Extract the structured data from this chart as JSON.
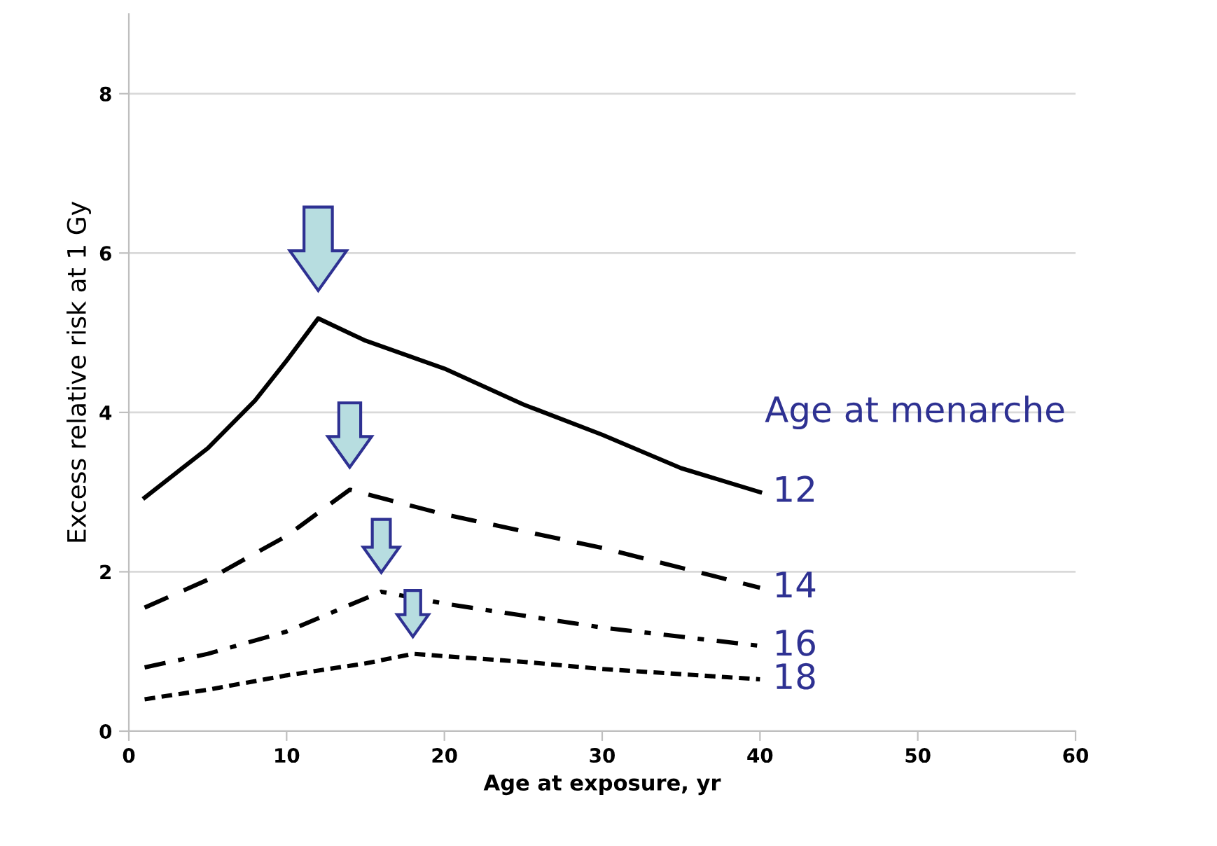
{
  "chart_data": {
    "type": "line",
    "xlabel": "Age at exposure, yr",
    "ylabel": "Excess relative risk at 1 Gy",
    "legend_title": "Age at menarche",
    "xlim": [
      0,
      60
    ],
    "xticks": [
      0,
      10,
      20,
      30,
      40,
      50,
      60
    ],
    "ylim": [
      0,
      9
    ],
    "yticks": [
      0,
      2,
      4,
      6,
      8
    ],
    "grid": "y",
    "marker": "none",
    "series": [
      {
        "name": "12",
        "color": "#000000",
        "line_style": "solid",
        "x": [
          1,
          5,
          8,
          10,
          12,
          15,
          20,
          25,
          30,
          35,
          40
        ],
        "values": [
          2.93,
          3.55,
          4.15,
          4.65,
          5.18,
          4.9,
          4.55,
          4.1,
          3.72,
          3.3,
          3.0
        ]
      },
      {
        "name": "14",
        "color": "#000000",
        "line_style": "dashed",
        "x": [
          1,
          5,
          10,
          14,
          20,
          30,
          40
        ],
        "values": [
          1.55,
          1.9,
          2.45,
          3.03,
          2.72,
          2.3,
          1.8
        ]
      },
      {
        "name": "16",
        "color": "#000000",
        "line_style": "dashdot",
        "x": [
          1,
          5,
          10,
          16,
          20,
          30,
          40
        ],
        "values": [
          0.8,
          0.97,
          1.25,
          1.75,
          1.6,
          1.3,
          1.07
        ]
      },
      {
        "name": "18",
        "color": "#000000",
        "line_style": "dotted",
        "x": [
          1,
          5,
          10,
          15,
          18,
          25,
          30,
          40
        ],
        "values": [
          0.4,
          0.52,
          0.7,
          0.85,
          0.97,
          0.87,
          0.78,
          0.65
        ]
      }
    ]
  }
}
